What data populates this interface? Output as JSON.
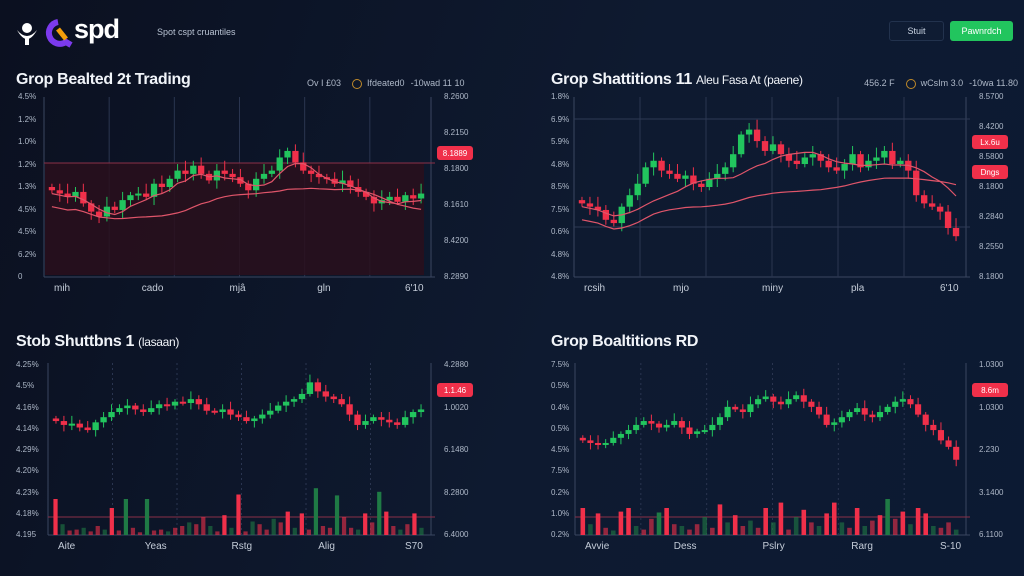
{
  "header": {
    "brand": "spd",
    "tagline": "Spot cspt cruantiles",
    "buttons": {
      "secondary": "Stuit",
      "primary": "Pawnrdch"
    },
    "accent": "#22c55e"
  },
  "colors": {
    "up": "#22c55e",
    "down": "#f0304a",
    "ma": "#e0556a",
    "badge": "#f0304a"
  },
  "charts": [
    {
      "title": "Grop Bealted 2t Trading",
      "meta": [
        "Ov I £03",
        "Ifdeated0",
        "-10wad 11 10"
      ],
      "y_left": [
        "4.5%",
        "1.2%",
        "1.0%",
        "1.2%",
        "1.3%",
        "4.5%",
        "4.5%",
        "6.2%",
        "0"
      ],
      "y_right": [
        "8.2600",
        "8.2150",
        "8.1800",
        "8.1610",
        "8.4200",
        "8.2890"
      ],
      "badges": [
        "8.1889"
      ],
      "x_labels": [
        "mih",
        "cado",
        "mjâ",
        "gln",
        "6'10"
      ],
      "closes": [
        48,
        46,
        44,
        47,
        40,
        35,
        32,
        38,
        36,
        42,
        45,
        46,
        44,
        52,
        50,
        55,
        60,
        58,
        63,
        58,
        54,
        60,
        58,
        56,
        52,
        48,
        55,
        58,
        60,
        68,
        72,
        65,
        60,
        58,
        56,
        55,
        52,
        54,
        50,
        47,
        44,
        40,
        42,
        44,
        41,
        45,
        43,
        46
      ]
    },
    {
      "title": "Grop Shattitions 11",
      "subtitle": "Aleu Fasa At (paene)",
      "meta": [
        "456.2 F",
        "wCsIm 3.0",
        "-10wa 11.80"
      ],
      "y_left": [
        "1.8%",
        "6.9%",
        "5.9%",
        "4.8%",
        "8.5%",
        "7.5%",
        "0.6%",
        "4.8%",
        "4.8%"
      ],
      "y_right": [
        "8.5700",
        "8.4200",
        "8.5800",
        "8.1800",
        "8.2840",
        "8.2550",
        "8.1800"
      ],
      "badges": [
        "Lx.6u",
        "Dngs"
      ],
      "x_labels": [
        "rcsih",
        "mjo",
        "miny",
        "pla",
        "6'10"
      ],
      "closes": [
        40,
        38,
        36,
        30,
        28,
        38,
        45,
        52,
        62,
        66,
        60,
        58,
        55,
        57,
        52,
        50,
        55,
        58,
        62,
        70,
        82,
        85,
        78,
        72,
        76,
        70,
        66,
        64,
        68,
        70,
        66,
        62,
        60,
        64,
        70,
        62,
        66,
        68,
        72,
        64,
        66,
        60,
        45,
        40,
        38,
        35,
        25,
        20
      ]
    },
    {
      "title": "Stob Shuttbns 1",
      "subtitle": "(lasaan)",
      "meta": [],
      "y_left": [
        "4.25%",
        "4.5%",
        "4.16%",
        "4.14%",
        "4.29%",
        "4.20%",
        "4.23%",
        "4.18%",
        "4.195"
      ],
      "y_right": [
        "4.2880",
        "1.0020",
        "6.1480",
        "8.2800",
        "6.4000"
      ],
      "badges": [
        "1.1.46"
      ],
      "x_labels": [
        "Aite",
        "Yeas",
        "Rstg",
        "Alig",
        "S70"
      ],
      "closes": [
        55,
        52,
        53,
        50,
        48,
        54,
        58,
        62,
        65,
        67,
        64,
        62,
        65,
        68,
        67,
        70,
        69,
        72,
        68,
        63,
        62,
        64,
        60,
        58,
        55,
        57,
        60,
        63,
        67,
        70,
        72,
        76,
        85,
        78,
        74,
        72,
        68,
        60,
        52,
        55,
        58,
        56,
        54,
        52,
        58,
        62,
        64
      ],
      "volumes": [
        40,
        12,
        5,
        6,
        8,
        4,
        10,
        6,
        30,
        5,
        40,
        8,
        3,
        40,
        5,
        6,
        4,
        8,
        10,
        14,
        12,
        20,
        10,
        4,
        22,
        8,
        45,
        4,
        15,
        12,
        6,
        18,
        14,
        26,
        8,
        24,
        6,
        52,
        10,
        8,
        44,
        20,
        8,
        6,
        24,
        14,
        48,
        26,
        10,
        6,
        12,
        24,
        8
      ]
    },
    {
      "title": "Grop Boaltitions RD",
      "meta": [],
      "y_left": [
        "7.5%",
        "0.5%",
        "0.4%",
        "0.5%",
        "4.5%",
        "7.5%",
        "0.2%",
        "1.0%",
        "0.2%"
      ],
      "y_right": [
        "1.0300",
        "1.0300",
        "2.230",
        "3.1400",
        "6.1100"
      ],
      "badges": [
        "8.6m"
      ],
      "x_labels": [
        "Avvie",
        "Dess",
        "Pslry",
        "Rarg",
        "S-10"
      ],
      "closes": [
        40,
        38,
        37,
        38,
        42,
        45,
        48,
        52,
        55,
        53,
        50,
        52,
        55,
        50,
        45,
        47,
        48,
        52,
        58,
        66,
        64,
        62,
        68,
        72,
        74,
        70,
        68,
        72,
        75,
        70,
        66,
        60,
        52,
        54,
        58,
        62,
        65,
        60,
        58,
        62,
        66,
        70,
        72,
        68,
        60,
        52,
        48,
        40,
        35,
        25
      ],
      "volumes": [
        30,
        12,
        24,
        8,
        5,
        26,
        30,
        10,
        6,
        18,
        25,
        30,
        12,
        10,
        6,
        12,
        20,
        8,
        34,
        14,
        22,
        10,
        16,
        8,
        30,
        14,
        36,
        6,
        20,
        28,
        14,
        10,
        24,
        36,
        14,
        8,
        30,
        10,
        16,
        22,
        40,
        18,
        26,
        12,
        30,
        24,
        10,
        8,
        14,
        6
      ]
    }
  ]
}
